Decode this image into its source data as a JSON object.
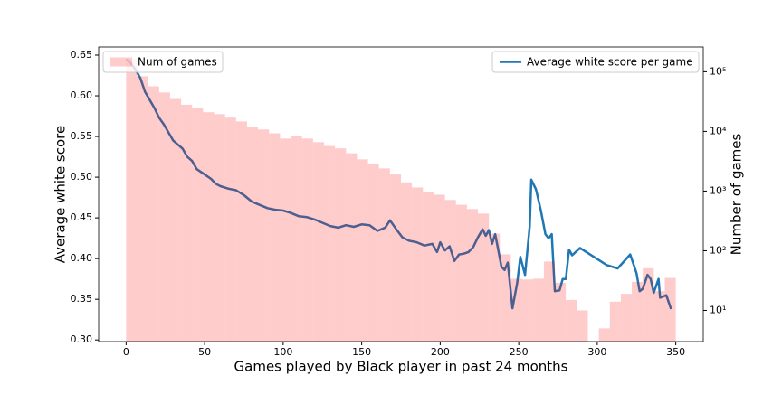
{
  "chart_data": [
    {
      "type": "histogram",
      "name": "Num of games",
      "color": "#ff0000",
      "alpha": 0.2,
      "legend": "upper left",
      "ylabel": "Number of games",
      "log": true,
      "bins": [
        0,
        7,
        14,
        21,
        28,
        35,
        42,
        49,
        56,
        63,
        70,
        77,
        84,
        91,
        98,
        105,
        112,
        119,
        126,
        133,
        140,
        147,
        154,
        161,
        168,
        175,
        182,
        189,
        196,
        203,
        210,
        217,
        224,
        231,
        238,
        245,
        252,
        259,
        266,
        273,
        280,
        287,
        294,
        301,
        308,
        315,
        322,
        329,
        336,
        343,
        350
      ],
      "counts": [
        163000,
        84000,
        57000,
        45000,
        35000,
        28000,
        25000,
        21000,
        19500,
        17000,
        14700,
        12000,
        10800,
        9300,
        7600,
        8400,
        7600,
        6600,
        5700,
        5200,
        4300,
        3400,
        2900,
        2400,
        1900,
        1400,
        1150,
        960,
        870,
        710,
        590,
        500,
        420,
        194,
        87,
        34,
        33,
        34,
        66,
        29,
        15,
        10,
        0,
        5,
        14,
        19,
        30,
        51,
        21,
        35
      ],
      "y2lim": [
        3,
        260000
      ],
      "y2ticks": [
        {
          "value": 10,
          "label": "10¹"
        },
        {
          "value": 100,
          "label": "10²"
        },
        {
          "value": 1000,
          "label": "10³"
        },
        {
          "value": 10000,
          "label": "10⁴"
        },
        {
          "value": 100000,
          "label": "10⁵"
        }
      ]
    },
    {
      "type": "line",
      "legend": "upper right",
      "xlabel": "Games played by Black player in past 24 months",
      "ylabel": "Average white score",
      "xlim": [
        -17.5,
        367.5
      ],
      "xticks": [
        0,
        50,
        100,
        150,
        200,
        250,
        300,
        350
      ],
      "ylim": [
        0.298,
        0.66
      ],
      "yticks": [
        {
          "value": 0.3,
          "label": "0.30"
        },
        0.35,
        {
          "value": 0.4,
          "label": "0.40"
        },
        0.45,
        {
          "value": 0.5,
          "label": "0.50"
        },
        0.55,
        {
          "value": 0.6,
          "label": "0.60"
        },
        0.65
      ],
      "series": [
        {
          "name": "Average white score per game",
          "color": "#1f77b4",
          "x": [
            0,
            3,
            6,
            9,
            12,
            15,
            18,
            21,
            24,
            27,
            30,
            33,
            36,
            39,
            42,
            45,
            48,
            51,
            54,
            57,
            60,
            65,
            70,
            75,
            80,
            85,
            90,
            95,
            100,
            105,
            110,
            115,
            120,
            125,
            130,
            135,
            140,
            145,
            150,
            155,
            160,
            165,
            168,
            172,
            176,
            180,
            185,
            190,
            195,
            198,
            200,
            203,
            206,
            209,
            212,
            215,
            218,
            221,
            224,
            227,
            229,
            231,
            233,
            235,
            237,
            239,
            241,
            243,
            246,
            249,
            251,
            254,
            257,
            258,
            261,
            264,
            267,
            269,
            271,
            273,
            276,
            278,
            280,
            282,
            284,
            289,
            306,
            313,
            321,
            325,
            327,
            329,
            332,
            334,
            336,
            339,
            340,
            344,
            347
          ],
          "values": [
            0.645,
            0.64,
            0.632,
            0.622,
            0.605,
            0.595,
            0.585,
            0.573,
            0.565,
            0.555,
            0.545,
            0.54,
            0.535,
            0.525,
            0.52,
            0.51,
            0.506,
            0.502,
            0.498,
            0.492,
            0.489,
            0.486,
            0.484,
            0.478,
            0.47,
            0.466,
            0.462,
            0.46,
            0.459,
            0.456,
            0.452,
            0.451,
            0.448,
            0.444,
            0.44,
            0.438,
            0.441,
            0.439,
            0.442,
            0.441,
            0.434,
            0.438,
            0.447,
            0.436,
            0.426,
            0.422,
            0.42,
            0.416,
            0.418,
            0.408,
            0.42,
            0.41,
            0.415,
            0.397,
            0.405,
            0.406,
            0.408,
            0.414,
            0.426,
            0.436,
            0.428,
            0.435,
            0.418,
            0.43,
            0.41,
            0.39,
            0.386,
            0.395,
            0.339,
            0.37,
            0.402,
            0.38,
            0.44,
            0.497,
            0.485,
            0.46,
            0.43,
            0.425,
            0.43,
            0.36,
            0.361,
            0.375,
            0.375,
            0.411,
            0.404,
            0.413,
            0.392,
            0.388,
            0.405,
            0.382,
            0.36,
            0.363,
            0.38,
            0.375,
            0.358,
            0.375,
            0.352,
            0.355,
            0.338
          ]
        }
      ]
    }
  ]
}
